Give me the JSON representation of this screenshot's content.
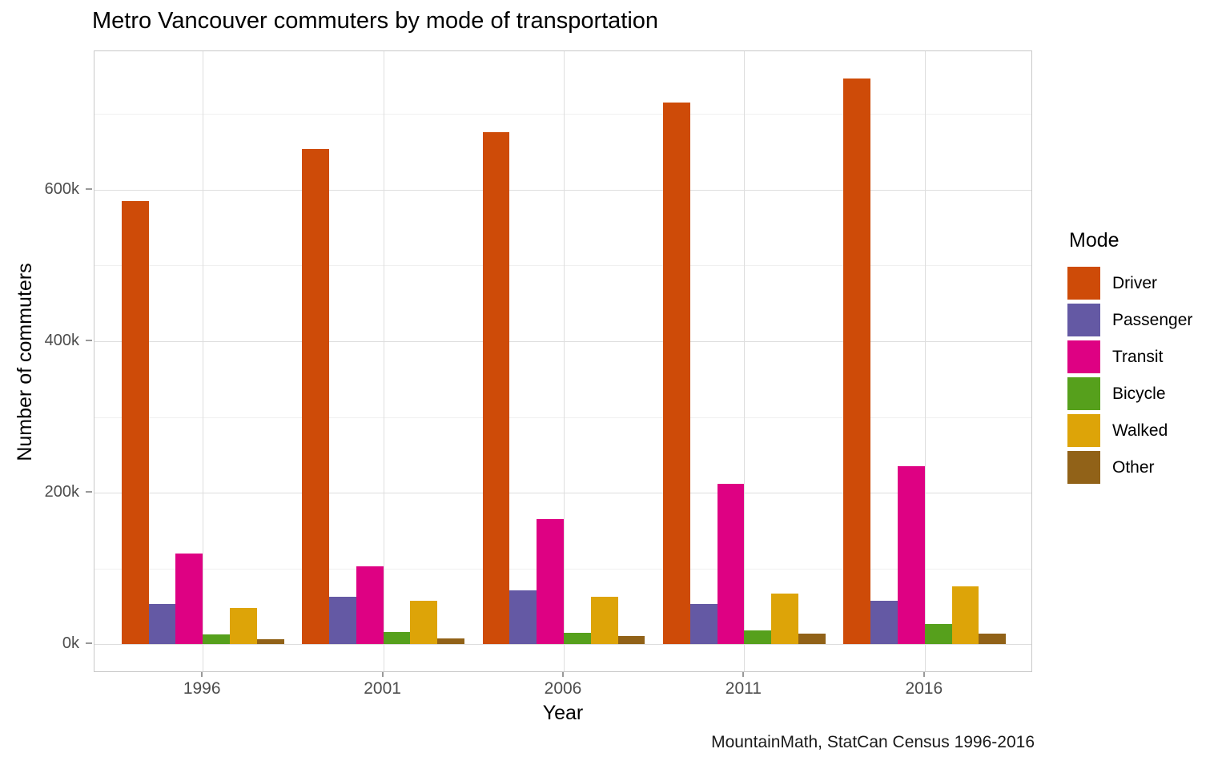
{
  "caption": "MountainMath, StatCan Census 1996-2016",
  "chart_data": {
    "type": "bar",
    "title": "Metro Vancouver commuters by mode of transportation",
    "xlabel": "Year",
    "ylabel": "Number of commuters",
    "legend_title": "Mode",
    "legend_position": "right",
    "grid": true,
    "unit": "thousands of commuters",
    "categories": [
      "1996",
      "2001",
      "2006",
      "2011",
      "2016"
    ],
    "series": [
      {
        "name": "Driver",
        "color": "#ce4b08",
        "values_k": [
          585,
          654,
          676,
          715,
          747
        ]
      },
      {
        "name": "Passenger",
        "color": "#6459a4",
        "values_k": [
          53.5,
          63,
          71,
          53,
          57
        ]
      },
      {
        "name": "Transit",
        "color": "#de0183",
        "values_k": [
          119.5,
          103,
          165.5,
          212,
          235.5
        ]
      },
      {
        "name": "Bicycle",
        "color": "#56a01c",
        "values_k": [
          13,
          16.5,
          15,
          18.5,
          27
        ]
      },
      {
        "name": "Walked",
        "color": "#dda408",
        "values_k": [
          47.5,
          57.5,
          63,
          66.5,
          76.5
        ]
      },
      {
        "name": "Other",
        "color": "#916218",
        "values_k": [
          7,
          7.5,
          11,
          14,
          14
        ]
      }
    ],
    "y_axis": {
      "tick_values_k": [
        0,
        200,
        400,
        600
      ],
      "tick_labels": [
        "0k",
        "200k",
        "400k",
        "600k"
      ],
      "minor_tick_values_k": [
        100,
        300,
        500,
        700
      ],
      "ylim_k": [
        0,
        782
      ]
    },
    "colors_meta": {
      "grid_major": "#dedede",
      "grid_minor": "#f0f0f0",
      "panel_border": "#c9c9c9",
      "axis_tick": "#999999",
      "tick_text": "#4d4d4d"
    }
  }
}
